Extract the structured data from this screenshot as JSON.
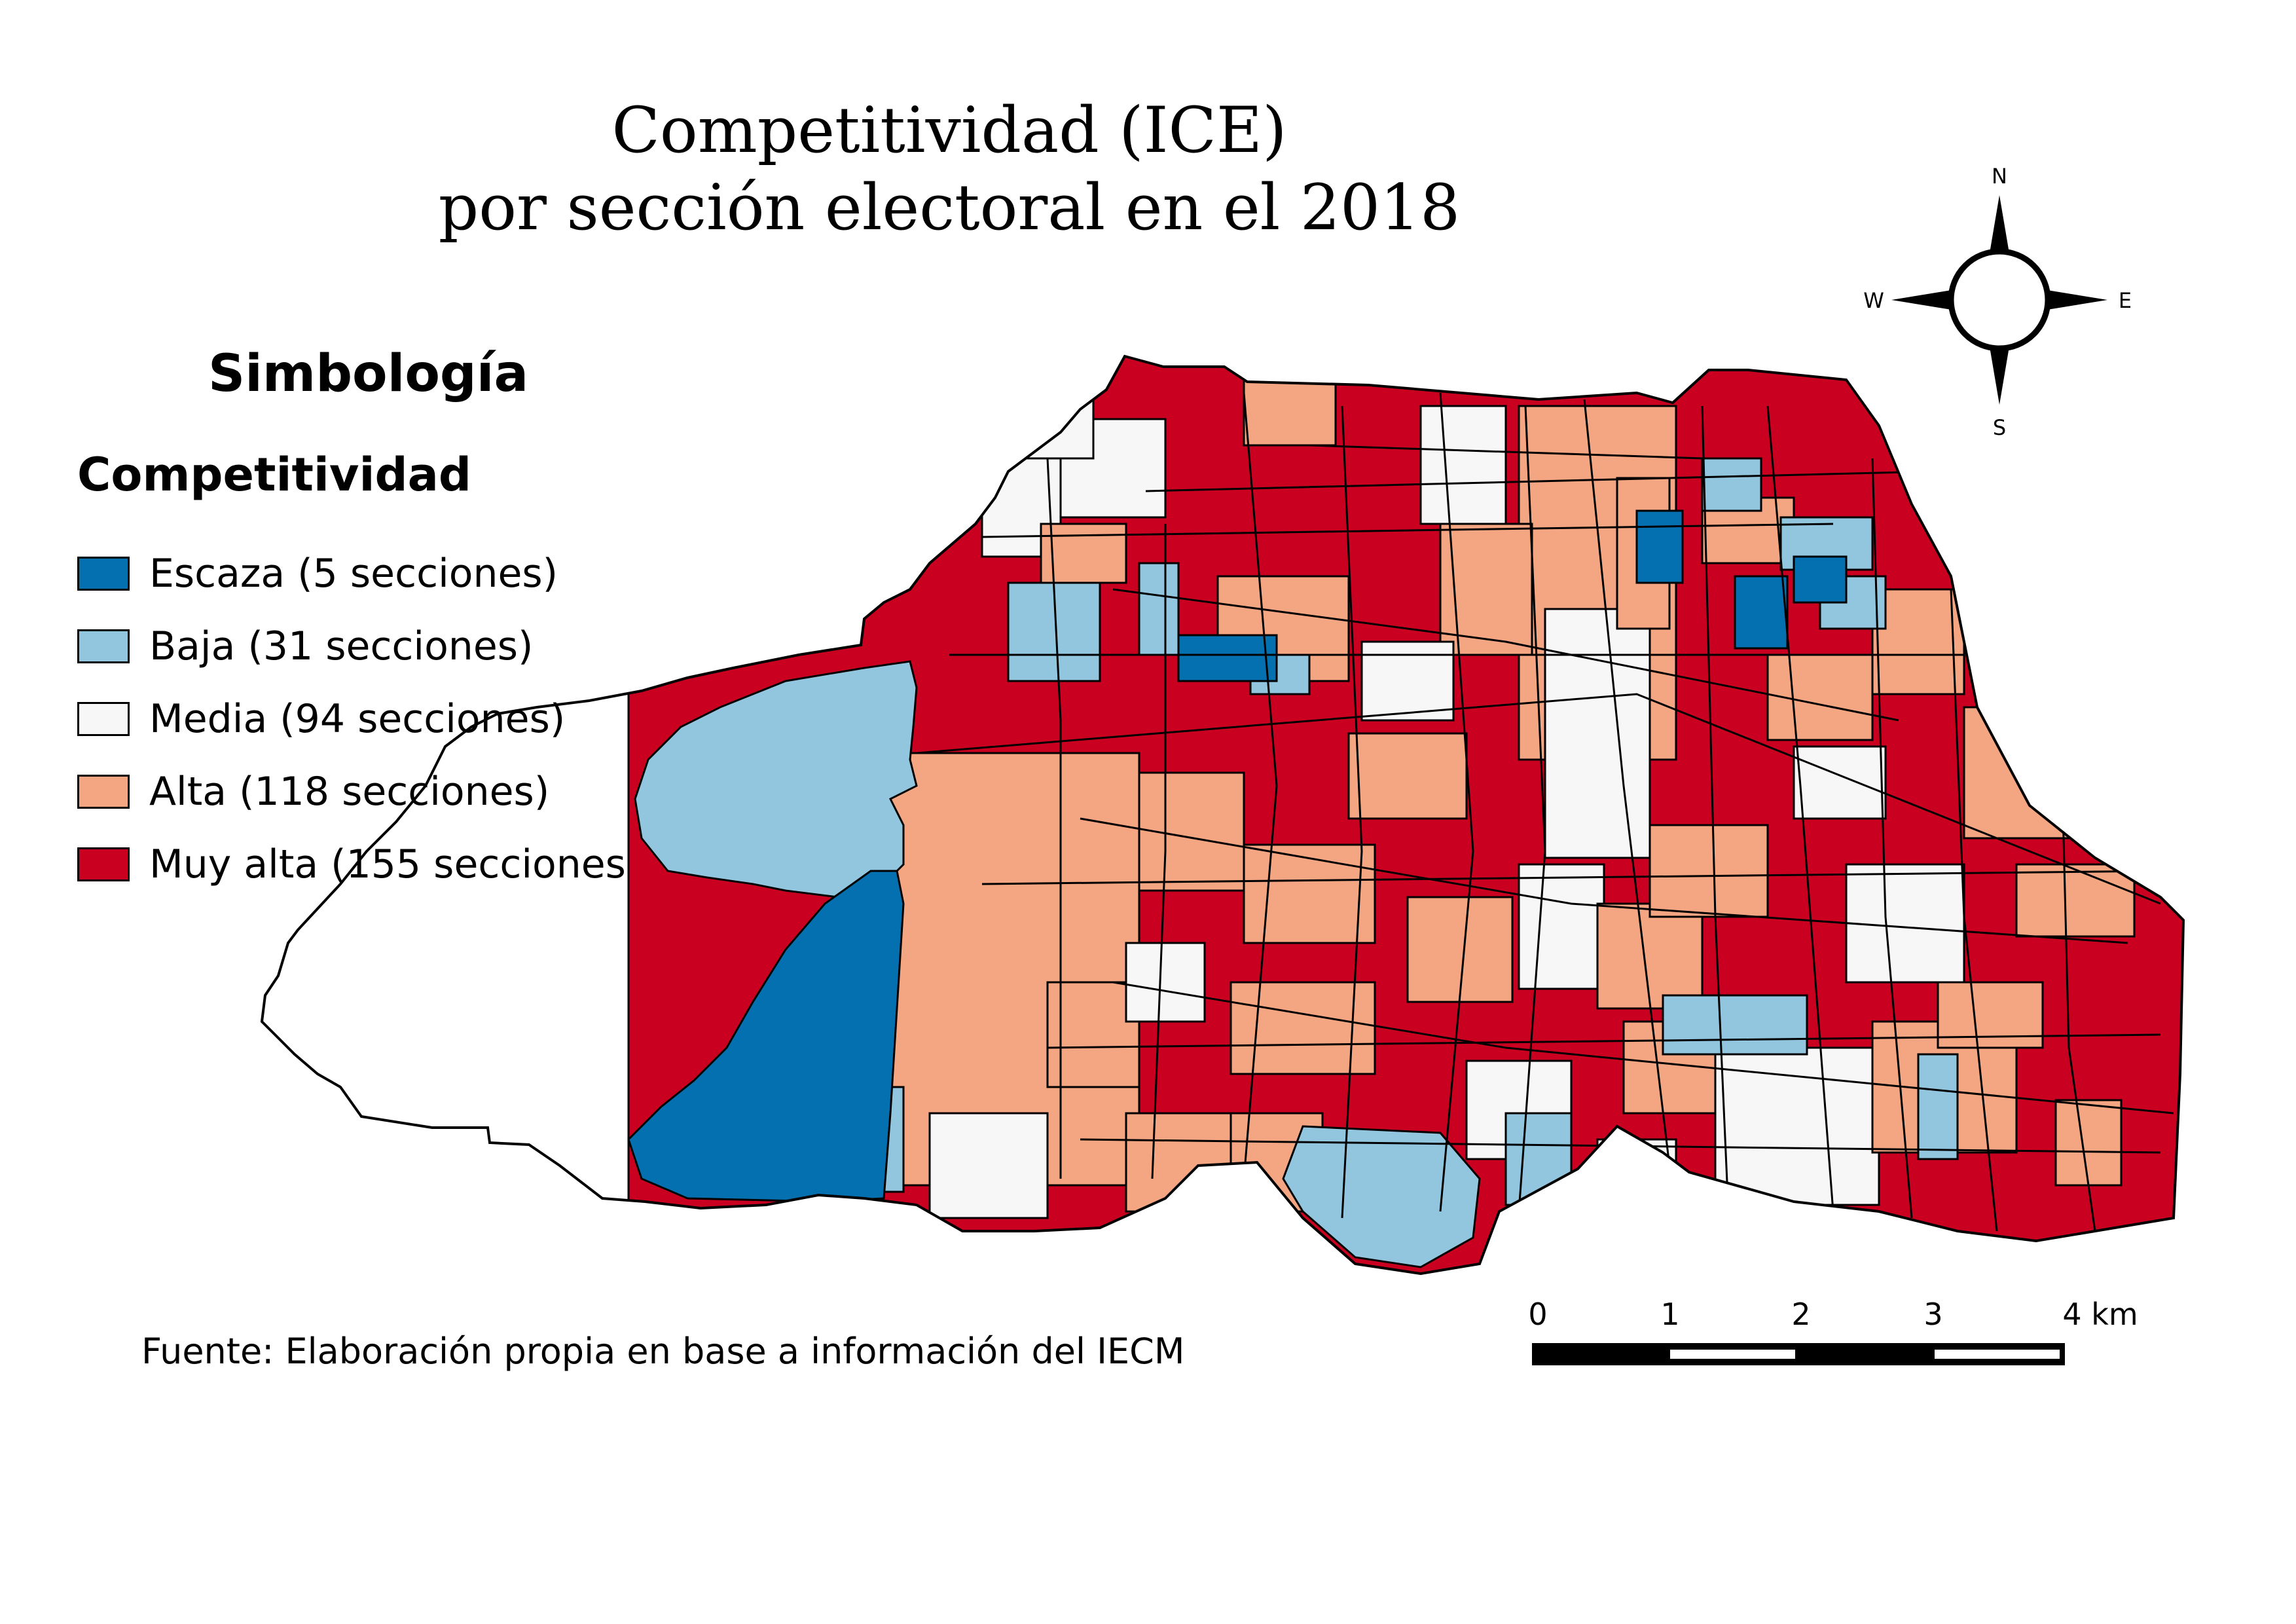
{
  "title": {
    "line1": "Competitividad (ICE)",
    "line2": "por sección electoral en el 2018"
  },
  "legend": {
    "heading": "Simbología",
    "subheading": "Competitividad",
    "items": [
      {
        "label": "Escaza (5 secciones)",
        "color": "#0570b0"
      },
      {
        "label": "Baja (31 secciones)",
        "color": "#92c5de"
      },
      {
        "label": "Media (94 secciones)",
        "color": "#f7f7f7"
      },
      {
        "label": "Alta (118 secciones)",
        "color": "#f4a582"
      },
      {
        "label": "Muy alta (155 secciones)",
        "color": "#ca0020"
      }
    ]
  },
  "compass": {
    "north": "N",
    "south": "S",
    "east": "E",
    "west": "W"
  },
  "scale_bar": {
    "labels": [
      "0",
      "1",
      "2",
      "3",
      "4 km"
    ]
  },
  "source": "Fuente: Elaboración propia en base a información del IECM",
  "map_colors": {
    "escaza": "#0570b0",
    "baja": "#92c5de",
    "media": "#f7f7f7",
    "alta": "#f4a582",
    "muy_alta": "#ca0020",
    "border": "#000000"
  }
}
